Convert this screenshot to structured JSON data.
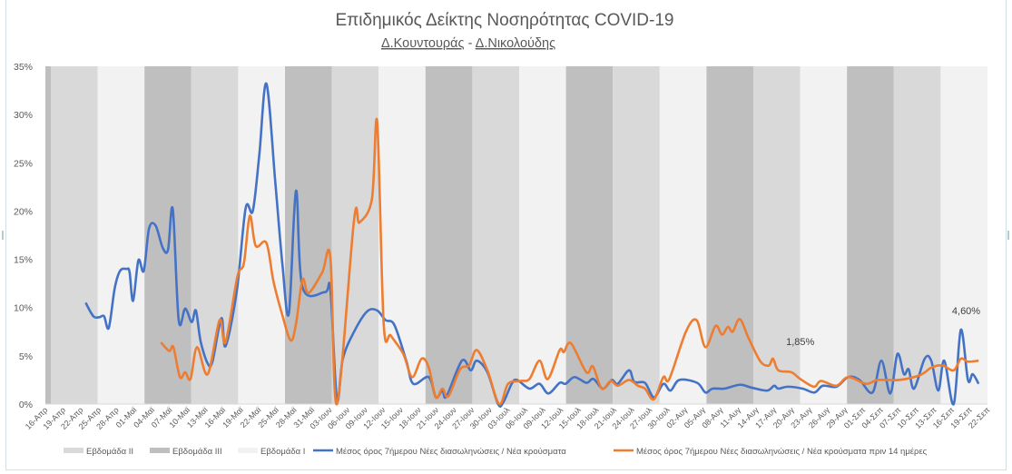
{
  "chart_data": {
    "type": "line",
    "title": "Επιδημικός Δείκτης Νοσηρότητας COVID-19",
    "subtitle_left": "Δ.Κουντουράς",
    "subtitle_sep": "-",
    "subtitle_right": "Δ.Νικολούδης",
    "ylim": [
      0,
      35
    ],
    "xlim": [
      0,
      159
    ],
    "y_ticks": [
      "0%",
      "5%",
      "10%",
      "15%",
      "20%",
      "25%",
      "30%",
      "35%"
    ],
    "x_ticks": [
      "16-Απρ",
      "19-Απρ",
      "22-Απρ",
      "25-Απρ",
      "28-Απρ",
      "01-Μαϊ",
      "04-Μαϊ",
      "07-Μαϊ",
      "10-Μαϊ",
      "13-Μαϊ",
      "16-Μαϊ",
      "19-Μαϊ",
      "22-Μαϊ",
      "25-Μαϊ",
      "28-Μαϊ",
      "31-Μαϊ",
      "03-Ιουν",
      "06-Ιουν",
      "09-Ιουν",
      "12-Ιουν",
      "15-Ιουν",
      "18-Ιουν",
      "21-Ιουν",
      "24-Ιουν",
      "27-Ιουν",
      "30-Ιουν",
      "03-Ιουλ",
      "06-Ιουλ",
      "09-Ιουλ",
      "12-Ιουλ",
      "15-Ιουλ",
      "18-Ιουλ",
      "21-Ιουλ",
      "24-Ιουλ",
      "27-Ιουλ",
      "30-Ιουλ",
      "02-Αυγ",
      "05-Αυγ",
      "08-Αυγ",
      "11-Αυγ",
      "14-Αυγ",
      "17-Αυγ",
      "20-Αυγ",
      "23-Αυγ",
      "26-Αυγ",
      "29-Αυγ",
      "01-Σεπ",
      "04-Σεπ",
      "07-Σεπ",
      "10-Σεπ",
      "13-Σεπ",
      "16-Σεπ",
      "19-Σεπ",
      "22-Σεπ"
    ],
    "week_bands": [
      "III",
      "II",
      "I",
      "III",
      "II",
      "I",
      "III",
      "II",
      "I",
      "III",
      "II",
      "I",
      "III",
      "II",
      "I",
      "III",
      "II",
      "I",
      "III",
      "II",
      "I"
    ],
    "band_colors": {
      "I": "#f2f2f2",
      "II": "#d9d9d9",
      "III": "#bfbfbf"
    },
    "legend": [
      {
        "key": "II",
        "label": "Εβδομάδα II",
        "kind": "band"
      },
      {
        "key": "III",
        "label": "Εβδομάδα III",
        "kind": "band"
      },
      {
        "key": "I",
        "label": "Εβδομάδα I",
        "kind": "band"
      },
      {
        "key": "blue",
        "label": "Μέσος όρος 7ήμερου Νέες διασωληνώσεις / Νέα κρούσματα",
        "kind": "line"
      },
      {
        "key": "orange",
        "label": "Μέσος όρος 7ήμερου Νέες διασωληνώσεις /  Νέα κρούσματα πριν 14 ημέρες",
        "kind": "line"
      }
    ],
    "series": [
      {
        "name": "Μέσος όρος 7ήμερου Νέες διασωληνώσεις / Νέα κρούσματα",
        "color": "#4472c4",
        "points": [
          [
            6.8,
            10.5
          ],
          [
            8.1,
            9.1
          ],
          [
            9.1,
            9.0
          ],
          [
            9.9,
            9.1
          ],
          [
            10.7,
            7.9
          ],
          [
            11.7,
            12.0
          ],
          [
            12.6,
            13.8
          ],
          [
            13.7,
            14.0
          ],
          [
            14.2,
            13.7
          ],
          [
            14.8,
            10.7
          ],
          [
            15.7,
            14.9
          ],
          [
            16.6,
            13.8
          ],
          [
            17.5,
            18.2
          ],
          [
            18.6,
            18.5
          ],
          [
            19.8,
            16.2
          ],
          [
            20.7,
            16.0
          ],
          [
            21.5,
            20.2
          ],
          [
            22.5,
            8.7
          ],
          [
            23.6,
            9.9
          ],
          [
            24.7,
            8.5
          ],
          [
            25.4,
            9.7
          ],
          [
            26.2,
            6.5
          ],
          [
            27.4,
            4.2
          ],
          [
            28.2,
            4.4
          ],
          [
            29.7,
            8.9
          ],
          [
            30.4,
            6.0
          ],
          [
            32.3,
            11.7
          ],
          [
            33.8,
            20.3
          ],
          [
            35.0,
            20.0
          ],
          [
            36.1,
            25.8
          ],
          [
            37.3,
            33.2
          ],
          [
            38.8,
            23.0
          ],
          [
            40.0,
            14.5
          ],
          [
            41.1,
            9.4
          ],
          [
            42.3,
            22.1
          ],
          [
            43.4,
            12.1
          ],
          [
            47.2,
            11.6
          ],
          [
            48.1,
            11.8
          ],
          [
            49.2,
            0.5
          ],
          [
            50.2,
            4.7
          ],
          [
            52.1,
            7.5
          ],
          [
            54.3,
            9.6
          ],
          [
            56.0,
            9.7
          ],
          [
            57.4,
            8.7
          ],
          [
            58.9,
            8.2
          ],
          [
            60.9,
            4.5
          ],
          [
            62.1,
            2.1
          ],
          [
            64.7,
            2.8
          ],
          [
            65.9,
            0.7
          ],
          [
            67.0,
            1.4
          ],
          [
            67.7,
            0.8
          ],
          [
            70.3,
            4.5
          ],
          [
            71.8,
            3.5
          ],
          [
            72.8,
            4.5
          ],
          [
            74.6,
            3.3
          ],
          [
            76.4,
            0
          ],
          [
            77.3,
            0.2
          ],
          [
            78.7,
            2.1
          ],
          [
            79.6,
            2.5
          ],
          [
            81.7,
            1.6
          ],
          [
            83.4,
            2.1
          ],
          [
            84.9,
            1.1
          ],
          [
            86.8,
            2.2
          ],
          [
            87.8,
            2.1
          ],
          [
            89.3,
            2.8
          ],
          [
            91.3,
            2.2
          ],
          [
            92.5,
            2.6
          ],
          [
            94.1,
            1.6
          ],
          [
            95.6,
            2.5
          ],
          [
            96.6,
            2.1
          ],
          [
            98.5,
            3.5
          ],
          [
            99.4,
            2.3
          ],
          [
            101.2,
            2.2
          ],
          [
            102.7,
            0.7
          ],
          [
            104.3,
            2.1
          ],
          [
            105.5,
            1.4
          ],
          [
            107.0,
            2.5
          ],
          [
            110.0,
            2.2
          ],
          [
            111.4,
            1.2
          ],
          [
            112.6,
            1.6
          ],
          [
            114.6,
            1.6
          ],
          [
            117.2,
            2.0
          ],
          [
            119.2,
            1.7
          ],
          [
            121.8,
            1.4
          ],
          [
            123.0,
            1.9
          ],
          [
            123.7,
            1.6
          ],
          [
            125.3,
            1.8
          ],
          [
            127.8,
            1.6
          ],
          [
            129.8,
            1.2
          ],
          [
            131.2,
            1.9
          ],
          [
            133.5,
            1.8
          ],
          [
            135.5,
            2.8
          ],
          [
            137.4,
            2.5
          ],
          [
            139.6,
            1.2
          ],
          [
            141.1,
            4.5
          ],
          [
            142.6,
            1.1
          ],
          [
            143.8,
            5.2
          ],
          [
            144.9,
            3.1
          ],
          [
            145.7,
            3.6
          ],
          [
            146.6,
            1.6
          ],
          [
            148.4,
            4.7
          ],
          [
            149.5,
            4.5
          ],
          [
            150.7,
            1.4
          ],
          [
            151.7,
            4.5
          ],
          [
            153.3,
            0
          ],
          [
            154.5,
            7.7
          ],
          [
            155.7,
            2.5
          ],
          [
            156.5,
            3.1
          ],
          [
            157.5,
            2.1
          ]
        ]
      },
      {
        "name": "Μέσος όρος 7ήμερου Νέες διασωληνώσεις /  Νέα κρούσματα πριν 14 ημέρες",
        "color": "#ed7d31",
        "points": [
          [
            19.5,
            6.4
          ],
          [
            20.9,
            5.5
          ],
          [
            21.6,
            5.9
          ],
          [
            22.7,
            2.8
          ],
          [
            23.6,
            3.3
          ],
          [
            24.5,
            2.6
          ],
          [
            25.6,
            5.9
          ],
          [
            27.4,
            3.1
          ],
          [
            29.4,
            8.7
          ],
          [
            30.4,
            6.4
          ],
          [
            32.4,
            13.2
          ],
          [
            33.5,
            14.6
          ],
          [
            34.5,
            19.5
          ],
          [
            35.5,
            16.4
          ],
          [
            37.3,
            16.7
          ],
          [
            38.5,
            12.7
          ],
          [
            40.0,
            9.2
          ],
          [
            41.4,
            6.6
          ],
          [
            42.3,
            8.3
          ],
          [
            43.4,
            12.9
          ],
          [
            44.4,
            11.5
          ],
          [
            46.7,
            13.6
          ],
          [
            48.1,
            15.2
          ],
          [
            49.2,
            0
          ],
          [
            52.1,
            19.1
          ],
          [
            53.0,
            18.8
          ],
          [
            55.1,
            21.2
          ],
          [
            56.0,
            29.2
          ],
          [
            57.1,
            8.3
          ],
          [
            58.3,
            7.1
          ],
          [
            60.4,
            5.2
          ],
          [
            61.9,
            2.8
          ],
          [
            63.5,
            4.7
          ],
          [
            64.7,
            3.8
          ],
          [
            65.9,
            0.7
          ],
          [
            67.0,
            1.6
          ],
          [
            68.0,
            0.8
          ],
          [
            70.0,
            3.6
          ],
          [
            71.5,
            4.0
          ],
          [
            72.8,
            5.6
          ],
          [
            74.6,
            3.5
          ],
          [
            76.6,
            0
          ],
          [
            78.1,
            2.1
          ],
          [
            80.2,
            2.4
          ],
          [
            81.7,
            2.6
          ],
          [
            83.4,
            4.5
          ],
          [
            84.8,
            2.6
          ],
          [
            86.8,
            5.6
          ],
          [
            87.5,
            5.4
          ],
          [
            88.7,
            6.3
          ],
          [
            91.3,
            3.3
          ],
          [
            92.4,
            3.9
          ],
          [
            93.9,
            1.6
          ],
          [
            95.4,
            2.4
          ],
          [
            96.6,
            1.9
          ],
          [
            98.5,
            2.5
          ],
          [
            100.0,
            1.9
          ],
          [
            101.2,
            1.6
          ],
          [
            102.7,
            0.5
          ],
          [
            104.3,
            2.8
          ],
          [
            105.3,
            2.6
          ],
          [
            108.1,
            7.5
          ],
          [
            109.9,
            8.7
          ],
          [
            111.4,
            5.9
          ],
          [
            113.1,
            8.1
          ],
          [
            114.2,
            7.2
          ],
          [
            115.2,
            8.0
          ],
          [
            116.0,
            7.5
          ],
          [
            117.2,
            8.8
          ],
          [
            118.7,
            6.8
          ],
          [
            120.7,
            4.4
          ],
          [
            122.1,
            4.0
          ],
          [
            122.8,
            4.7
          ],
          [
            123.7,
            3.5
          ],
          [
            125.9,
            3.3
          ],
          [
            127.4,
            2.6
          ],
          [
            129.7,
            1.8
          ],
          [
            130.9,
            2.4
          ],
          [
            133.5,
            1.9
          ],
          [
            135.5,
            2.8
          ],
          [
            138.5,
            2.1
          ],
          [
            140.5,
            2.5
          ],
          [
            144.1,
            2.5
          ],
          [
            147.6,
            3.0
          ],
          [
            149.6,
            3.8
          ],
          [
            151.4,
            4.0
          ],
          [
            153.3,
            3.5
          ],
          [
            154.5,
            4.7
          ],
          [
            155.7,
            4.4
          ],
          [
            157.5,
            4.5
          ]
        ]
      }
    ],
    "annotations": [
      {
        "text": "1,85%",
        "x": 127.4,
        "y": 6.1
      },
      {
        "text": "4,60%",
        "x": 155.4,
        "y": 9.3
      }
    ]
  }
}
